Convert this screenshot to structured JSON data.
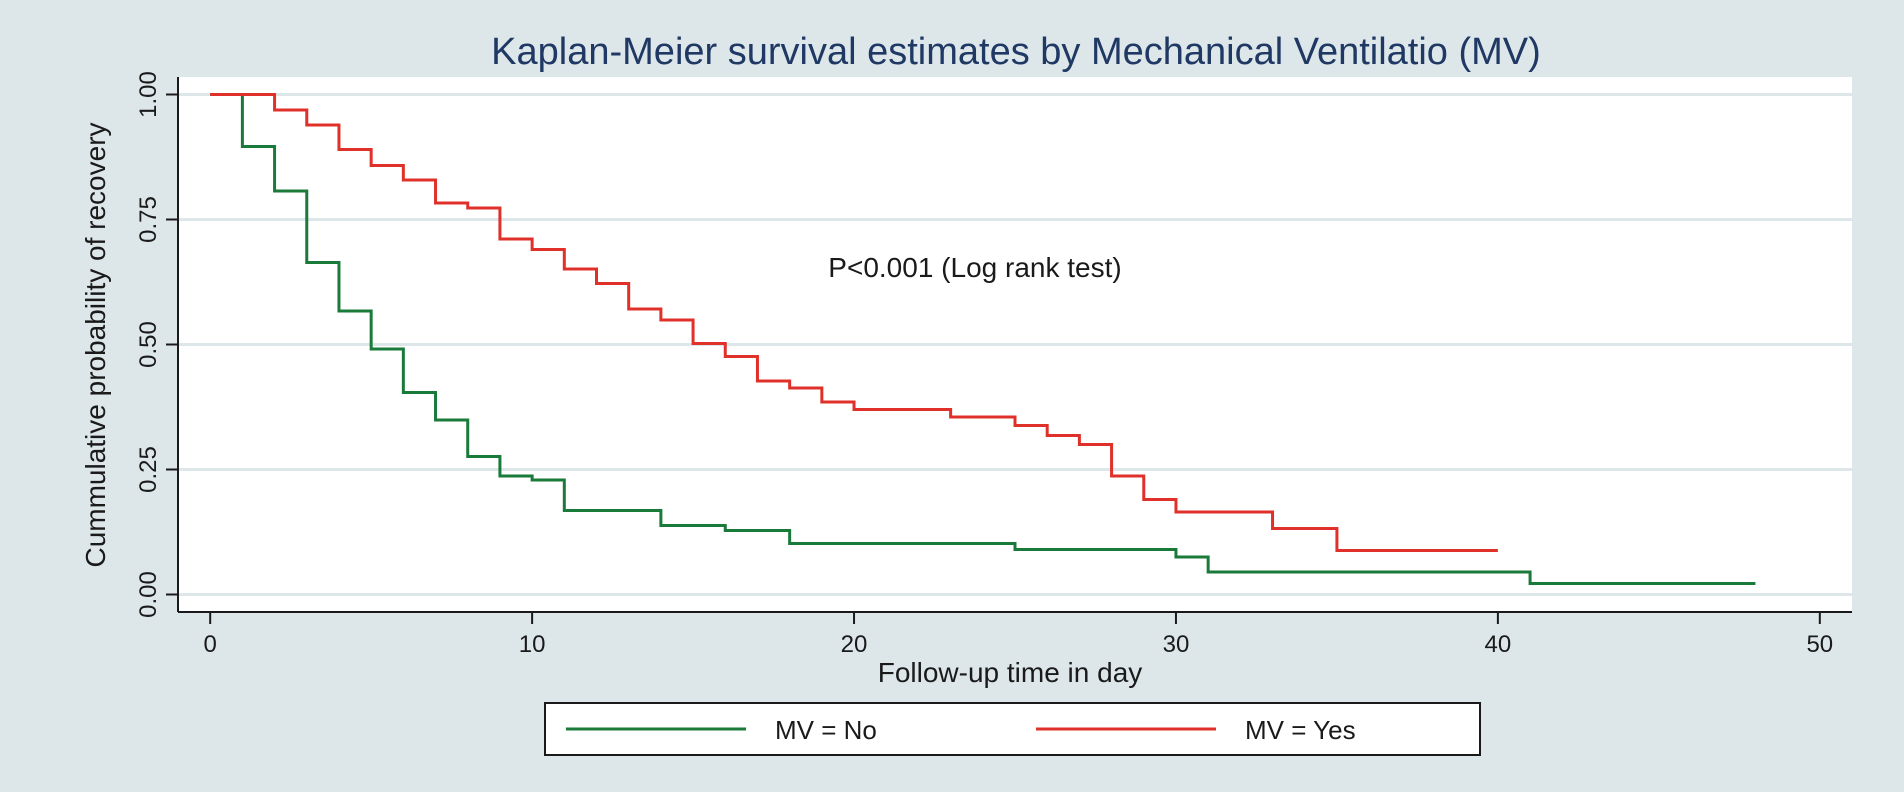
{
  "chart_data": {
    "type": "line",
    "title": "Kaplan-Meier survival estimates by Mechanical Ventilatio (MV)",
    "xlabel": "Follow-up time in day",
    "ylabel": "Cummulative probability of recovery",
    "xlim": [
      -1,
      51
    ],
    "ylim": [
      -0.035,
      1.035
    ],
    "x_ticks": [
      0,
      10,
      20,
      30,
      40,
      50
    ],
    "y_ticks": [
      0,
      0.25,
      0.5,
      0.75,
      1.0
    ],
    "x_tick_labels": [
      "0",
      "10",
      "20",
      "30",
      "40",
      "50"
    ],
    "y_tick_labels": [
      "0.00",
      "0.25",
      "0.50",
      "0.75",
      "1.00"
    ],
    "grid": true,
    "legend_position": "bottom",
    "annotation": "P<0.001 (Log rank test)",
    "series": [
      {
        "name": "MV = No",
        "color": "#1a7a3a",
        "x": [
          0,
          1,
          2,
          3,
          4,
          5,
          6,
          7,
          8,
          9,
          10,
          11,
          14,
          16,
          18,
          25,
          30,
          31,
          41,
          48
        ],
        "y": [
          1.0,
          0.896,
          0.807,
          0.664,
          0.567,
          0.491,
          0.404,
          0.349,
          0.276,
          0.237,
          0.229,
          0.168,
          0.138,
          0.128,
          0.102,
          0.09,
          0.075,
          0.045,
          0.022,
          0.022
        ]
      },
      {
        "name": "MV = Yes",
        "color": "#e0302a",
        "x": [
          0,
          2,
          3,
          4,
          5,
          6,
          7,
          8,
          9,
          10,
          11,
          12,
          13,
          14,
          15,
          16,
          17,
          18,
          19,
          20,
          23,
          25,
          26,
          27,
          28,
          29,
          30,
          33,
          35,
          40
        ],
        "y": [
          1.0,
          0.969,
          0.939,
          0.89,
          0.858,
          0.829,
          0.783,
          0.773,
          0.711,
          0.69,
          0.651,
          0.622,
          0.571,
          0.549,
          0.502,
          0.476,
          0.427,
          0.413,
          0.385,
          0.37,
          0.355,
          0.338,
          0.318,
          0.3,
          0.237,
          0.19,
          0.165,
          0.132,
          0.088,
          0.088
        ]
      }
    ]
  },
  "colors": {
    "background": "#dde7ea",
    "plot_area": "#ffffff",
    "grid": "#dde7ea",
    "title": "#1f3864"
  }
}
